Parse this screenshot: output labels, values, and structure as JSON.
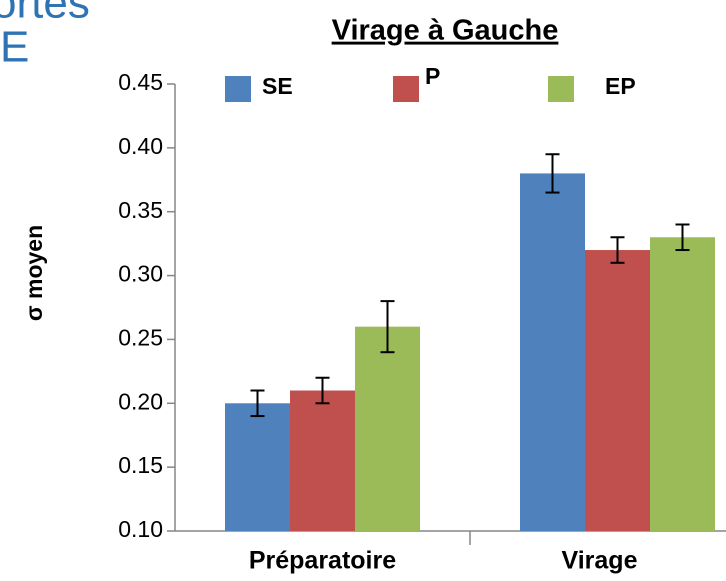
{
  "slide_text": [
    "ortes",
    "E"
  ],
  "chart_data": {
    "type": "bar",
    "title": "Virage à Gauche",
    "y_label": "σ moyen",
    "categories": [
      "Préparatoire",
      "Virage"
    ],
    "series": [
      {
        "name": "SE",
        "color": "#4f81bd",
        "values": [
          0.2,
          0.38
        ],
        "errors": [
          0.01,
          0.015
        ]
      },
      {
        "name": "P",
        "color": "#c0504d",
        "values": [
          0.21,
          0.32
        ],
        "errors": [
          0.01,
          0.01
        ]
      },
      {
        "name": "EP",
        "color": "#9bbb59",
        "values": [
          0.26,
          0.33
        ],
        "errors": [
          0.02,
          0.01
        ]
      }
    ],
    "ylim": [
      0.1,
      0.45
    ],
    "yticks": [
      {
        "value": 0.1,
        "label": "0.10"
      },
      0.15,
      {
        "value": 0.2,
        "label": "0.20"
      },
      0.25,
      {
        "value": 0.3,
        "label": "0.30"
      },
      0.35,
      {
        "value": 0.4,
        "label": "0.40"
      },
      0.45
    ],
    "legend": "top",
    "grid": false
  }
}
